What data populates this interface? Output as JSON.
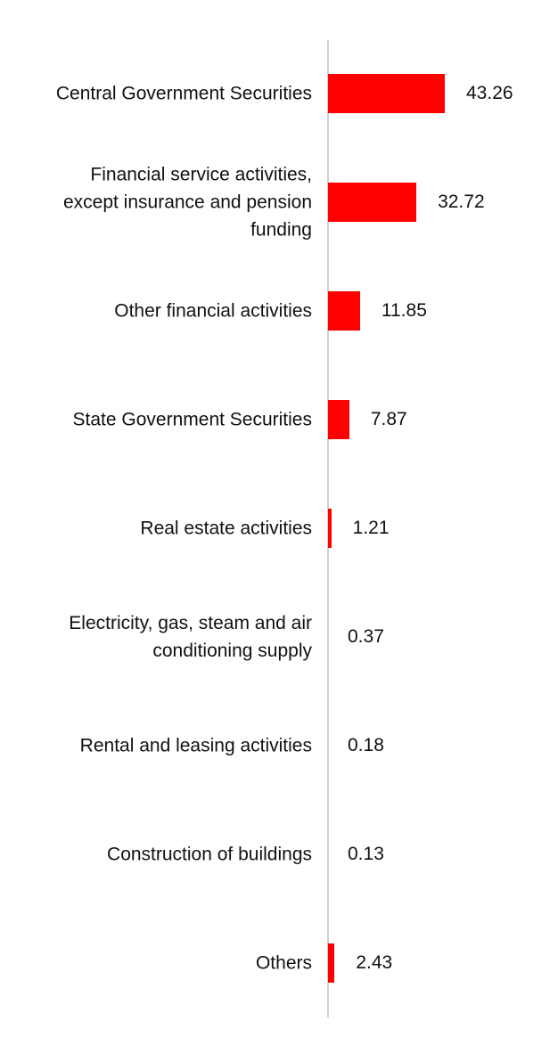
{
  "chart_data": {
    "type": "bar",
    "orientation": "horizontal",
    "categories": [
      "Central Government Securities",
      "Financial service activities,\nexcept insurance and pension\nfunding",
      "Other financial activities",
      "State Government Securities",
      "Real estate activities",
      "Electricity, gas, steam and air\nconditioning supply",
      "Rental and leasing activities",
      "Construction of buildings",
      "Others"
    ],
    "values": [
      43.26,
      32.72,
      11.85,
      7.87,
      1.21,
      0.37,
      0.18,
      0.13,
      2.43
    ],
    "value_labels": [
      "43.26",
      "32.72",
      "11.85",
      "7.87",
      "1.21",
      "0.37",
      "0.18",
      "0.13",
      "2.43"
    ],
    "bar_color": "#ff0000",
    "axis_color": "#d2d2d2",
    "xlim": [
      0,
      50
    ],
    "grid": false,
    "legend": "none"
  }
}
